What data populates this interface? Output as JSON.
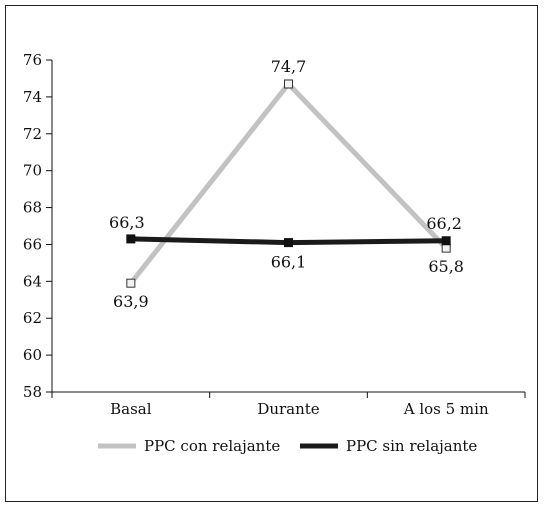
{
  "chart_data": {
    "type": "line",
    "categories": [
      "Basal",
      "Durante",
      "A los 5 min"
    ],
    "series": [
      {
        "name": "PPC con relajante",
        "values": [
          63.9,
          74.7,
          65.8
        ],
        "labels": [
          "63,9",
          "74,7",
          "65,8"
        ],
        "color": "#c2c2c2",
        "marker": "square-open"
      },
      {
        "name": "PPC sin relajante",
        "values": [
          66.3,
          66.1,
          66.2
        ],
        "labels": [
          "66,3",
          "66,1",
          "66,2"
        ],
        "color": "#1a1a1a",
        "marker": "square-filled"
      }
    ],
    "ylim": [
      58,
      76
    ],
    "yticks": [
      "58",
      "60",
      "62",
      "64",
      "66",
      "68",
      "70",
      "72",
      "74",
      "76"
    ],
    "grid": false,
    "legend_position": "bottom"
  }
}
